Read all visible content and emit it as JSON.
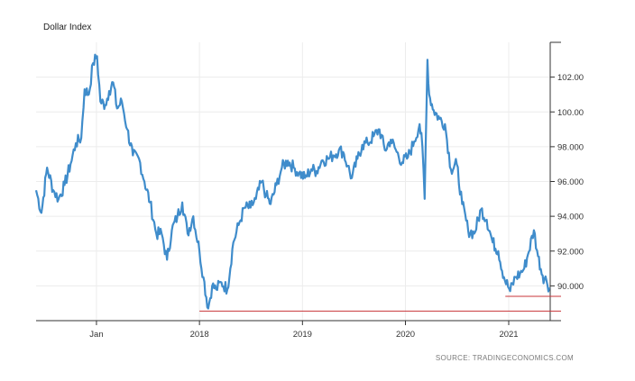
{
  "chart_data": {
    "type": "line",
    "title": "Dollar Index",
    "source": "SOURCE: TRADINGECONOMICS.COM",
    "x_tick_labels": [
      "Jan",
      "2018",
      "2019",
      "2020",
      "2021"
    ],
    "x_tick_dates": [
      "2017-01-01",
      "2018-01-01",
      "2019-01-01",
      "2020-01-01",
      "2021-01-01"
    ],
    "xlim": [
      "2016-06-01",
      "2021-05-28"
    ],
    "y_tick_labels": [
      "90.000",
      "92.000",
      "94.000",
      "96.000",
      "98.000",
      "100.00",
      "102.00"
    ],
    "y_tick_values": [
      90,
      92,
      94,
      96,
      98,
      100,
      102
    ],
    "ylim": [
      88,
      104
    ],
    "y_axis_position": "right",
    "grid": true,
    "series": [
      {
        "color": "#3f8ccb",
        "x": [
          "2016-06-01",
          "2016-06-20",
          "2016-07-10",
          "2016-08-01",
          "2016-08-20",
          "2016-09-10",
          "2016-10-01",
          "2016-10-20",
          "2016-11-08",
          "2016-11-20",
          "2016-12-05",
          "2016-12-20",
          "2017-01-03",
          "2017-01-15",
          "2017-02-01",
          "2017-02-15",
          "2017-03-01",
          "2017-03-15",
          "2017-04-01",
          "2017-04-20",
          "2017-05-10",
          "2017-06-01",
          "2017-06-20",
          "2017-07-10",
          "2017-08-01",
          "2017-08-20",
          "2017-09-08",
          "2017-09-25",
          "2017-10-15",
          "2017-11-01",
          "2017-11-20",
          "2017-12-10",
          "2018-01-01",
          "2018-01-15",
          "2018-02-01",
          "2018-02-15",
          "2018-03-01",
          "2018-03-20",
          "2018-04-10",
          "2018-05-01",
          "2018-05-20",
          "2018-06-10",
          "2018-07-01",
          "2018-07-20",
          "2018-08-10",
          "2018-08-25",
          "2018-09-10",
          "2018-10-01",
          "2018-10-20",
          "2018-11-10",
          "2018-12-01",
          "2018-12-20",
          "2019-01-10",
          "2019-02-01",
          "2019-02-20",
          "2019-03-10",
          "2019-04-01",
          "2019-04-20",
          "2019-05-10",
          "2019-05-25",
          "2019-06-10",
          "2019-06-25",
          "2019-07-15",
          "2019-08-01",
          "2019-08-20",
          "2019-09-10",
          "2019-10-01",
          "2019-10-20",
          "2019-11-10",
          "2019-12-01",
          "2019-12-20",
          "2020-01-10",
          "2020-02-01",
          "2020-02-20",
          "2020-03-01",
          "2020-03-09",
          "2020-03-19",
          "2020-03-25",
          "2020-04-10",
          "2020-05-01",
          "2020-05-20",
          "2020-06-10",
          "2020-07-01",
          "2020-07-20",
          "2020-08-10",
          "2020-09-01",
          "2020-09-25",
          "2020-10-15",
          "2020-11-05",
          "2020-11-25",
          "2020-12-15",
          "2021-01-06",
          "2021-01-25",
          "2021-02-10",
          "2021-02-25",
          "2021-03-10",
          "2021-03-31",
          "2021-04-15",
          "2021-05-01",
          "2021-05-15",
          "2021-05-25"
        ],
        "y": [
          95.5,
          94.2,
          96.8,
          95.5,
          95.0,
          95.8,
          97.0,
          98.2,
          98.5,
          101.3,
          101.0,
          102.8,
          103.2,
          100.6,
          100.4,
          101.2,
          101.7,
          100.2,
          100.6,
          99.0,
          97.5,
          97.3,
          96.0,
          94.8,
          93.0,
          93.0,
          91.5,
          93.2,
          94.0,
          94.8,
          93.0,
          94.0,
          92.0,
          90.5,
          88.7,
          90.0,
          89.8,
          90.2,
          89.8,
          92.5,
          93.5,
          94.5,
          94.5,
          95.0,
          96.0,
          95.2,
          94.7,
          95.8,
          96.8,
          97.2,
          96.8,
          96.5,
          96.2,
          96.7,
          96.6,
          97.2,
          97.3,
          97.5,
          97.8,
          97.7,
          96.9,
          96.2,
          97.3,
          98.1,
          98.2,
          98.6,
          99.0,
          97.8,
          98.4,
          97.7,
          97.1,
          97.4,
          98.3,
          99.3,
          98.0,
          95.0,
          103.0,
          101.0,
          100.1,
          99.6,
          99.3,
          96.7,
          97.0,
          94.7,
          93.2,
          93.0,
          94.4,
          93.8,
          92.5,
          92.0,
          90.5,
          89.7,
          90.5,
          90.7,
          91.0,
          91.8,
          93.2,
          91.7,
          90.6,
          90.3,
          89.9
        ]
      }
    ],
    "reference_lines": [
      {
        "y": 89.4,
        "color": "#c8343a",
        "x_start": "2020-12-20",
        "x_end": "2021-05-28"
      },
      {
        "y": 88.55,
        "color": "#c8343a",
        "x_start": "2018-01-01",
        "x_end": "2021-05-28"
      }
    ]
  }
}
